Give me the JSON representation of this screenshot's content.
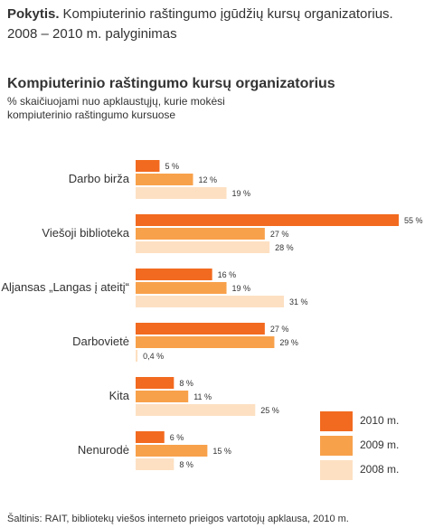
{
  "header": {
    "label": "Pokytis.",
    "lines": [
      "Kompiuterinio raštingumo įgūdžių kursų organizatorius.",
      "2008 – 2010 m. palyginimas"
    ]
  },
  "chart_data": {
    "type": "hbar",
    "title": "Kompiuterinio raštingumo kursų organizatorius",
    "subtitle": [
      "% skaičiuojami nuo apklaustųjų, kurie mokėsi",
      "kompiuterinio raštingumo kursuose"
    ],
    "categories": [
      "Darbo birža",
      "Viešoji biblioteka",
      "Aljansas „Langas į ateitį“",
      "Darbovietė",
      "Kita",
      "Nenurodė"
    ],
    "series": [
      {
        "name": "2010 m.",
        "color": "#f26a1f",
        "values": [
          5,
          55,
          16,
          27,
          8,
          6
        ],
        "value_labels": [
          "5 %",
          "55 %",
          "16 %",
          "27 %",
          "8 %",
          "6 %"
        ]
      },
      {
        "name": "2009 m.",
        "color": "#f8a14b",
        "values": [
          12,
          27,
          19,
          29,
          11,
          15
        ],
        "value_labels": [
          "12 %",
          "27 %",
          "19 %",
          "29 %",
          "11 %",
          "15 %"
        ]
      },
      {
        "name": "2008 m.",
        "color": "#fde0c2",
        "values": [
          19,
          28,
          31,
          0.4,
          25,
          8
        ],
        "value_labels": [
          "19 %",
          "28 %",
          "31 %",
          "0,4 %",
          "25 %",
          "8 %"
        ]
      }
    ],
    "legend": "bottom-right",
    "source": "Šaltinis: RAIT, bibliotekų viešos interneto prieigos vartotojų apklausa, 2010 m."
  }
}
